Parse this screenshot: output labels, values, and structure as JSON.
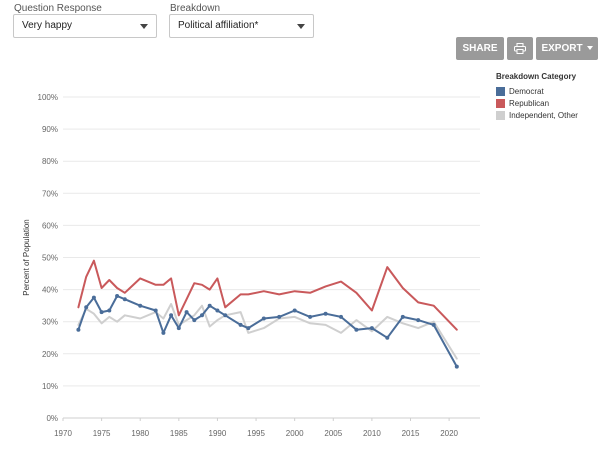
{
  "controls": {
    "question_label": "Question Response",
    "question_value": "Very happy",
    "breakdown_label": "Breakdown",
    "breakdown_value": "Political affiliation*"
  },
  "toolbar": {
    "share_label": "SHARE",
    "export_label": "EXPORT",
    "print_icon": "printer-icon"
  },
  "colors": {
    "democrat": "#4a6d99",
    "republican": "#c9595b",
    "independent": "#cfcfcf"
  },
  "chart_data": {
    "type": "line",
    "legend_title": "Breakdown Category",
    "legend_position": "top-right",
    "ylabel": "Percent of Population",
    "ylim": [
      0,
      100
    ],
    "xlim": [
      1970,
      2024
    ],
    "x_ticks": [
      "1970",
      "1975",
      "1980",
      "1985",
      "1990",
      "1995",
      "2000",
      "2005",
      "2010",
      "2015",
      "2020"
    ],
    "y_ticks": [
      "0%",
      "10%",
      "20%",
      "30%",
      "40%",
      "50%",
      "60%",
      "70%",
      "80%",
      "90%",
      "100%"
    ],
    "grid": true,
    "series": [
      {
        "name": "Democrat",
        "color": "#4a6d99",
        "markers": true,
        "x": [
          1972,
          1973,
          1974,
          1975,
          1976,
          1977,
          1978,
          1980,
          1982,
          1983,
          1984,
          1985,
          1986,
          1987,
          1988,
          1989,
          1990,
          1991,
          1993,
          1994,
          1996,
          1998,
          2000,
          2002,
          2004,
          2006,
          2008,
          2010,
          2012,
          2014,
          2016,
          2018,
          2021
        ],
        "y": [
          27.5,
          34.5,
          37.5,
          33,
          33.5,
          38,
          37,
          35,
          33.5,
          26.5,
          32,
          28,
          33,
          30.5,
          32,
          35,
          33.5,
          32,
          29,
          28,
          31,
          31.5,
          33.5,
          31.5,
          32.5,
          31.5,
          27.5,
          28,
          25,
          31.5,
          30.5,
          29,
          16
        ]
      },
      {
        "name": "Republican",
        "color": "#c9595b",
        "markers": false,
        "x": [
          1972,
          1973,
          1974,
          1975,
          1976,
          1977,
          1978,
          1980,
          1982,
          1983,
          1984,
          1985,
          1986,
          1987,
          1988,
          1989,
          1990,
          1991,
          1993,
          1994,
          1996,
          1998,
          2000,
          2002,
          2004,
          2006,
          2008,
          2010,
          2012,
          2014,
          2016,
          2018,
          2021
        ],
        "y": [
          34.5,
          44,
          49,
          40.5,
          43,
          40.5,
          39,
          43.5,
          41.5,
          41.5,
          43.5,
          32,
          37,
          42,
          41.5,
          40,
          43.5,
          34.5,
          38.5,
          38.5,
          39.5,
          38.5,
          39.5,
          39,
          41,
          42.5,
          39,
          33.5,
          47,
          40.5,
          36,
          35,
          27.5
        ]
      },
      {
        "name": "Independent, Other",
        "color": "#cfcfcf",
        "markers": false,
        "x": [
          1972,
          1973,
          1974,
          1975,
          1976,
          1977,
          1978,
          1980,
          1982,
          1983,
          1984,
          1985,
          1986,
          1987,
          1988,
          1989,
          1990,
          1991,
          1993,
          1994,
          1996,
          1998,
          2000,
          2002,
          2004,
          2006,
          2008,
          2010,
          2012,
          2014,
          2016,
          2018,
          2021
        ],
        "y": [
          29,
          34,
          32.5,
          29.5,
          31.5,
          30,
          32,
          31,
          33,
          31,
          35.5,
          29,
          30.5,
          32,
          35,
          28.5,
          30.5,
          32,
          33,
          26.5,
          28,
          31,
          31.5,
          29.5,
          29,
          26.5,
          30.5,
          27,
          31.5,
          29.5,
          28,
          30,
          18.5
        ]
      }
    ]
  }
}
